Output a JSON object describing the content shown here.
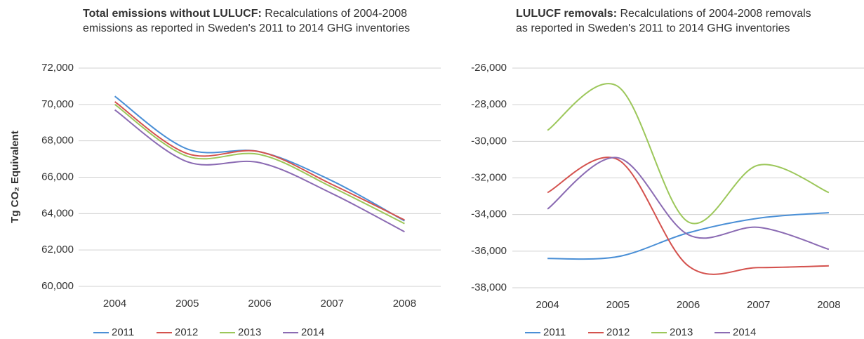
{
  "chart_data": [
    {
      "type": "line",
      "title": "Total emissions without LULUCF:",
      "subtitle": "Recalculations of 2004-2008 emissions as reported in Sweden's 2011 to 2014 GHG inventories",
      "y_label": "Tg CO₂ Equivalent",
      "categories": [
        "2004",
        "2005",
        "2006",
        "2007",
        "2008"
      ],
      "series": [
        {
          "name": "2011",
          "color": "#4a8fd6",
          "values": [
            70450,
            67550,
            67400,
            65800,
            63600
          ]
        },
        {
          "name": "2012",
          "color": "#d4524e",
          "values": [
            70150,
            67300,
            67400,
            65600,
            63650
          ]
        },
        {
          "name": "2013",
          "color": "#9cc75a",
          "values": [
            70000,
            67150,
            67250,
            65450,
            63450
          ]
        },
        {
          "name": "2014",
          "color": "#8b6bb3",
          "values": [
            69700,
            66850,
            66800,
            65100,
            63000
          ]
        }
      ],
      "ylim": [
        60000,
        72000
      ],
      "yticks": [
        {
          "value": 60000,
          "label": "60,000"
        },
        {
          "value": 62000,
          "label": "62,000"
        },
        {
          "value": 64000,
          "label": "64,000"
        },
        {
          "value": 66000,
          "label": "66,000"
        },
        {
          "value": 68000,
          "label": "68,000"
        },
        {
          "value": 70000,
          "label": "70,000"
        },
        {
          "value": 72000,
          "label": "72,000"
        }
      ],
      "grid": true
    },
    {
      "type": "line",
      "title": "LULUCF removals:",
      "subtitle": "Recalculations of 2004-2008 removals as reported in Sweden's 2011 to 2014 GHG inventories",
      "categories": [
        "2004",
        "2005",
        "2006",
        "2007",
        "2008"
      ],
      "series": [
        {
          "name": "2011",
          "color": "#4a8fd6",
          "values": [
            -36400,
            -36300,
            -35000,
            -34200,
            -33900
          ]
        },
        {
          "name": "2012",
          "color": "#d4524e",
          "values": [
            -32800,
            -31000,
            -36800,
            -36900,
            -36800
          ]
        },
        {
          "name": "2013",
          "color": "#9cc75a",
          "values": [
            -29400,
            -27000,
            -34400,
            -31300,
            -32800
          ]
        },
        {
          "name": "2014",
          "color": "#8b6bb3",
          "values": [
            -33700,
            -30900,
            -35100,
            -34700,
            -35900
          ]
        }
      ],
      "ylim": [
        -38000,
        -26000
      ],
      "yticks": [
        {
          "value": -38000,
          "label": "-38,000"
        },
        {
          "value": -36000,
          "label": "-36,000"
        },
        {
          "value": -34000,
          "label": "-34,000"
        },
        {
          "value": -32000,
          "label": "-32,000"
        },
        {
          "value": -30000,
          "label": "-30,000"
        },
        {
          "value": -28000,
          "label": "-28,000"
        },
        {
          "value": -26000,
          "label": "-26,000"
        }
      ],
      "grid": true
    }
  ]
}
